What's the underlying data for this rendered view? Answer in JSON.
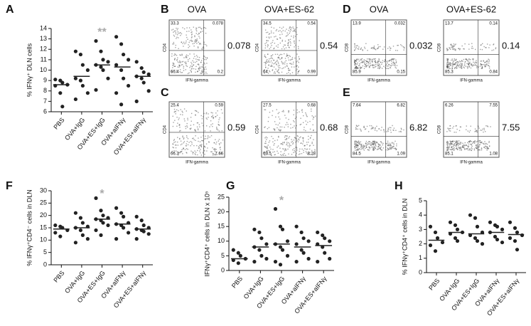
{
  "chart_data": [
    {
      "type": "dot",
      "panel": "A",
      "y_label": "% IFNγ⁺ DLN cells",
      "categories": [
        "PBS",
        "OVA+IgG",
        "OVA+ES+IgG",
        "OVA+aIFNγ",
        "OVA+ES+aIFNγ"
      ],
      "values": [
        [
          9.1,
          9.0,
          8.8,
          8.6,
          8.5,
          7.8,
          6.5
        ],
        [
          11.8,
          11.5,
          10.5,
          10.0,
          9.2,
          9.0,
          8.5,
          7.8,
          7.2
        ],
        [
          12.8,
          11.8,
          11.0,
          10.8,
          10.5,
          10.3,
          10.0,
          9.2,
          8.1
        ],
        [
          13.2,
          12.5,
          11.5,
          11.0,
          10.5,
          10.0,
          9.2,
          8.5,
          7.8,
          6.7
        ],
        [
          10.8,
          10.2,
          9.8,
          9.6,
          9.4,
          9.2,
          8.8,
          8.0,
          7.0
        ]
      ],
      "means": [
        8.6,
        9.4,
        10.5,
        10.3,
        9.4
      ],
      "color": "#222222",
      "ylim": [
        6,
        14
      ],
      "yticks": [
        6,
        7,
        8,
        9,
        10,
        11,
        12,
        13,
        14
      ],
      "annotations": [
        {
          "text": "**",
          "category": 2,
          "y": 13.8
        }
      ]
    },
    {
      "type": "dot",
      "panel": "F",
      "y_label": "% IFNγ⁺CD4⁻ cells in DLN",
      "categories": [
        "PBS",
        "OVA+IgG",
        "OVA+ES+IgG",
        "OVA+aIFNγ",
        "OVA+ES+aIFNγ"
      ],
      "values": [
        [
          16,
          15.5,
          15,
          14,
          13,
          11.5
        ],
        [
          21,
          19,
          17,
          15.5,
          15,
          14,
          12,
          10.5,
          9
        ],
        [
          27,
          22,
          20,
          19,
          18.5,
          18,
          17,
          16,
          14,
          12
        ],
        [
          23,
          21,
          19.5,
          17,
          16.5,
          16,
          15,
          13,
          10.5
        ],
        [
          19.5,
          18,
          16,
          15,
          14.5,
          14,
          13.5,
          12.5,
          10.5
        ]
      ],
      "means": [
        14.5,
        15,
        18.5,
        16.5,
        14.5
      ],
      "color": "#222222",
      "ylim": [
        0,
        30
      ],
      "yticks": [
        0,
        5,
        10,
        15,
        20,
        25,
        30
      ],
      "annotations": [
        {
          "text": "*",
          "category": 2,
          "y": 29.5
        }
      ]
    },
    {
      "type": "dot",
      "panel": "G",
      "y_label": "IFNγ⁺CD4⁺ cells in DLN x 10⁵",
      "categories": [
        "PBS",
        "OVA+IgG",
        "OVA+ES+IgG",
        "OVA+aIFNγ",
        "OVA+ES+aIFNγ"
      ],
      "values": [
        [
          7,
          6,
          5,
          4,
          3.5,
          2.5
        ],
        [
          14,
          13,
          11,
          9,
          8,
          7,
          5,
          4,
          3
        ],
        [
          21,
          15,
          14,
          10,
          9,
          8,
          7,
          5,
          3,
          2
        ],
        [
          15,
          13,
          11,
          10,
          9,
          7,
          6,
          4,
          3
        ],
        [
          13,
          12,
          11,
          10,
          9,
          8,
          6,
          4,
          3
        ]
      ],
      "means": [
        4,
        8,
        9,
        8,
        8.5
      ],
      "color": "#222222",
      "ylim": [
        0,
        25
      ],
      "yticks": [
        0,
        5,
        10,
        15,
        20,
        25
      ],
      "annotations": [
        {
          "text": "*",
          "category": 2,
          "y": 24.5
        }
      ]
    },
    {
      "type": "dot",
      "panel": "H",
      "y_label": "% IFNγ⁺CD4⁺ cells in DLN",
      "categories": [
        "PBS",
        "OVA+IgG",
        "OVA+ES+IgG",
        "OVA+aIFNγ",
        "OVA+ES+aIFNγ"
      ],
      "values": [
        [
          3.2,
          2.8,
          2.4,
          2.1,
          1.9,
          1.5
        ],
        [
          3.5,
          3.3,
          3.0,
          2.8,
          2.7,
          2.4,
          2.2
        ],
        [
          4.0,
          3.8,
          3.2,
          2.8,
          2.6,
          2.4,
          2.2,
          2.0
        ],
        [
          3.5,
          3.3,
          3.2,
          3.0,
          2.8,
          2.5,
          2.3,
          2.1
        ],
        [
          3.5,
          3.1,
          2.8,
          2.6,
          2.4,
          2.2,
          1.6
        ]
      ],
      "means": [
        2.25,
        2.8,
        2.7,
        2.8,
        2.65
      ],
      "color": "#222222",
      "ylim": [
        0,
        5
      ],
      "yticks": [
        0,
        1,
        2,
        3,
        4,
        5
      ],
      "annotations": []
    }
  ],
  "flow_panels": [
    {
      "panel": "B",
      "headers": [
        "OVA",
        "OVA+ES-62"
      ],
      "y_label": "CD4",
      "x_label": "IFN-gamma",
      "plots": [
        {
          "quadrants": [
            "33.3",
            "0.078",
            "66.4",
            "0.2"
          ],
          "callout": "0.078"
        },
        {
          "quadrants": [
            "34.5",
            "0.54",
            "64",
            "0.99"
          ],
          "callout": "0.54"
        }
      ]
    },
    {
      "panel": "C",
      "y_label": "CD4",
      "x_label": "IFN-gamma",
      "plots": [
        {
          "quadrants": [
            "25.4",
            "0.59",
            "66.3",
            "7.66"
          ],
          "callout": "0.59"
        },
        {
          "quadrants": [
            "27.5",
            "0.68",
            "63.5",
            "8.28"
          ],
          "callout": "0.68"
        }
      ]
    },
    {
      "panel": "D",
      "headers": [
        "OVA",
        "OVA+ES-62"
      ],
      "y_label": "CD8",
      "x_label": "IFN-gamma",
      "plots": [
        {
          "quadrants": [
            "13.9",
            "0.032",
            "85.9",
            "0.15"
          ],
          "callout": "0.032"
        },
        {
          "quadrants": [
            "13.7",
            "0.14",
            "85.3",
            "0.84"
          ],
          "callout": "0.14"
        }
      ]
    },
    {
      "panel": "E",
      "y_label": "CD8",
      "x_label": "IFN-gamma",
      "plots": [
        {
          "quadrants": [
            "7.64",
            "6.82",
            "84.5",
            "1.09"
          ],
          "callout": "6.82"
        },
        {
          "quadrants": [
            "6.26",
            "7.55",
            "85.1",
            "1.08"
          ],
          "callout": "7.55"
        }
      ]
    }
  ]
}
